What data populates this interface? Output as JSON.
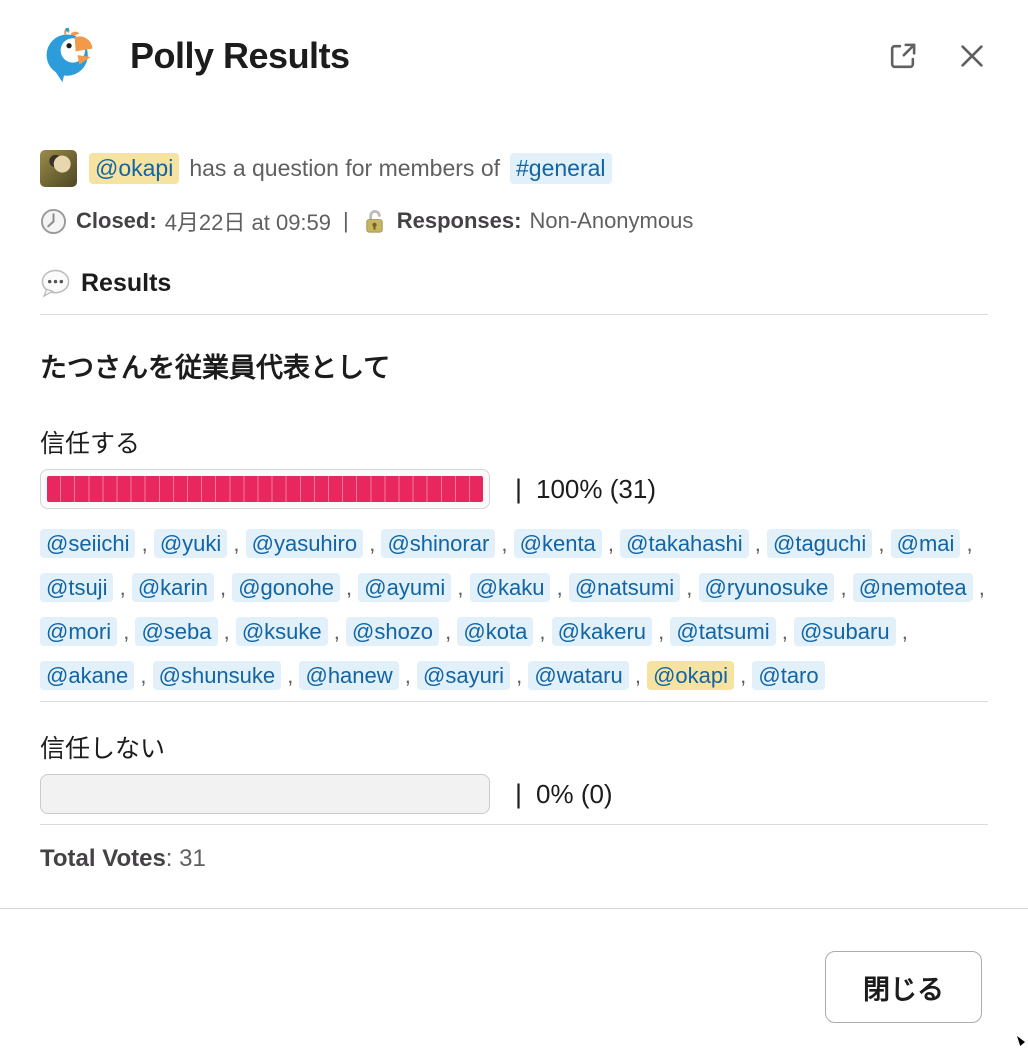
{
  "header": {
    "title": "Polly Results",
    "open_external_icon": "external-link-icon",
    "close_icon": "close-x-icon"
  },
  "intro": {
    "author": "@okapi",
    "text": "has a question for members of",
    "channel": "#general"
  },
  "meta": {
    "closed_icon": "clock-emoji",
    "closed_label": "Closed:",
    "closed_value": "4月22日 at 09:59",
    "separator": "|",
    "responses_icon": "open-lock-emoji",
    "responses_label": "Responses:",
    "responses_value": "Non-Anonymous"
  },
  "results_heading": {
    "icon": "speech-balloon-emoji",
    "label": "Results"
  },
  "poll": {
    "question": "たつさんを従業員代表として",
    "options": [
      {
        "label": "信任する",
        "percent": 100,
        "votes": 31,
        "pipe": "|",
        "value_text": "100% (31)",
        "self_voter": "@okapi",
        "voters": [
          "@seiichi",
          "@yuki",
          "@yasuhiro",
          "@shinorar",
          "@kenta",
          "@takahashi",
          "@taguchi",
          "@mai",
          "@tsuji",
          "@karin",
          "@gonohe",
          "@ayumi",
          "@kaku",
          "@natsumi",
          "@ryunosuke",
          "@nemotea",
          "@mori",
          "@seba",
          "@ksuke",
          "@shozo",
          "@kota",
          "@kakeru",
          "@tatsumi",
          "@subaru",
          "@akane",
          "@shunsuke",
          "@hanew",
          "@sayuri",
          "@wataru",
          "@okapi",
          "@taro"
        ]
      },
      {
        "label": "信任しない",
        "percent": 0,
        "votes": 0,
        "pipe": "|",
        "value_text": "0% (0)",
        "self_voter": "",
        "voters": []
      }
    ],
    "total_votes_label": "Total Votes",
    "total_votes_value": ": 31"
  },
  "footer": {
    "close_button_label": "閉じる"
  },
  "colors": {
    "bar_fill": "#E7275D",
    "bar_fill_separator": "#F2789B",
    "mention_text": "#1264A3",
    "mention_bg": "#E2F0FA",
    "self_mention_bg": "#F6E3A2",
    "text_dark": "#1d1c1d",
    "text_gray": "#616061",
    "divider": "#DBDBDB",
    "logo_blue": "#2D9CDB",
    "logo_orange": "#F2994A"
  }
}
